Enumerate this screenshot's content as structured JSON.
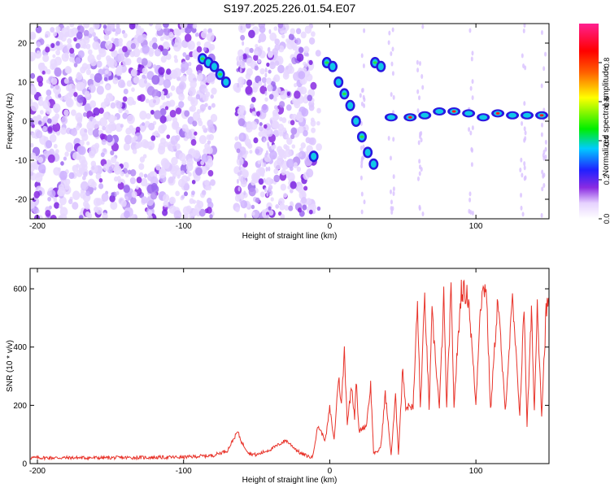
{
  "figure_title": "S197.2025.226.01.54.E07",
  "chart_data": [
    {
      "type": "heatmap",
      "name": "spectrogram",
      "xlabel": "Height of straight line (km)",
      "ylabel": "Frequency (Hz)",
      "xlim": [
        -205,
        150
      ],
      "ylim": [
        -25,
        25
      ],
      "xticks": [
        -200,
        -100,
        0,
        100
      ],
      "yticks": [
        -20,
        -10,
        0,
        10,
        20
      ],
      "colorbar": {
        "label": "Normalized spectral amplitude",
        "range": [
          0.0,
          1.0
        ],
        "ticks": [
          0.0,
          0.2,
          0.4,
          0.6,
          0.8
        ],
        "tick_labels": [
          "0.0",
          "0.2",
          "0.4",
          "0.6",
          "0.8"
        ],
        "colors": [
          "#ffffff",
          "#e6d2ff",
          "#8a2be2",
          "#2020ff",
          "#00ccff",
          "#00ee00",
          "#ffff00",
          "#ff6000",
          "#ff0000",
          "#ff2090"
        ]
      },
      "signal_track": [
        {
          "x": -87,
          "y": 16
        },
        {
          "x": -83,
          "y": 15
        },
        {
          "x": -79,
          "y": 14
        },
        {
          "x": -75,
          "y": 12
        },
        {
          "x": -71,
          "y": 10
        },
        {
          "x": -11,
          "y": -9
        },
        {
          "x": -2,
          "y": 15
        },
        {
          "x": 2,
          "y": 14
        },
        {
          "x": 6,
          "y": 10
        },
        {
          "x": 10,
          "y": 7
        },
        {
          "x": 14,
          "y": 4
        },
        {
          "x": 18,
          "y": 0
        },
        {
          "x": 22,
          "y": -4
        },
        {
          "x": 26,
          "y": -8
        },
        {
          "x": 30,
          "y": -11
        },
        {
          "x": 31,
          "y": 15
        },
        {
          "x": 35,
          "y": 14
        },
        {
          "x": 42,
          "y": 1
        },
        {
          "x": 55,
          "y": 1
        },
        {
          "x": 65,
          "y": 1.5
        },
        {
          "x": 75,
          "y": 2.5
        },
        {
          "x": 85,
          "y": 2.5
        },
        {
          "x": 95,
          "y": 2
        },
        {
          "x": 105,
          "y": 1
        },
        {
          "x": 115,
          "y": 2
        },
        {
          "x": 125,
          "y": 1.5
        },
        {
          "x": 135,
          "y": 1.5
        },
        {
          "x": 145,
          "y": 1.5
        }
      ]
    },
    {
      "type": "line",
      "name": "snr",
      "xlabel": "Height of straight line (km)",
      "ylabel": "SNR (10 * v/v)",
      "xlim": [
        -205,
        150
      ],
      "ylim": [
        0,
        670
      ],
      "xticks": [
        -200,
        -100,
        0,
        100
      ],
      "yticks": [
        0,
        200,
        400,
        600
      ],
      "color": "#e8332a",
      "series": [
        {
          "name": "SNR",
          "x": [
            -205,
            -150,
            -100,
            -80,
            -70,
            -63,
            -60,
            -55,
            -50,
            -40,
            -30,
            -20,
            -12,
            -8,
            -3,
            0,
            3,
            6,
            8,
            10,
            12,
            15,
            17,
            18,
            20,
            22,
            25,
            28,
            30,
            32,
            35,
            38,
            42,
            45,
            47,
            50,
            52,
            55,
            57,
            60,
            62,
            65,
            68,
            70,
            75,
            78,
            80,
            83,
            85,
            90,
            95,
            100,
            103,
            105,
            107,
            110,
            115,
            120,
            125,
            130,
            133,
            135,
            138,
            140,
            142,
            145,
            148,
            150
          ],
          "y": [
            20,
            20,
            22,
            28,
            45,
            110,
            70,
            35,
            30,
            50,
            80,
            35,
            20,
            130,
            80,
            190,
            80,
            300,
            200,
            390,
            140,
            270,
            160,
            290,
            110,
            120,
            130,
            270,
            40,
            35,
            60,
            240,
            30,
            230,
            35,
            330,
            190,
            200,
            190,
            550,
            190,
            570,
            190,
            510,
            190,
            570,
            190,
            590,
            200,
            600,
            570,
            200,
            550,
            590,
            620,
            180,
            570,
            180,
            560,
            170,
            540,
            130,
            520,
            180,
            550,
            170,
            520,
            560
          ]
        }
      ]
    }
  ]
}
